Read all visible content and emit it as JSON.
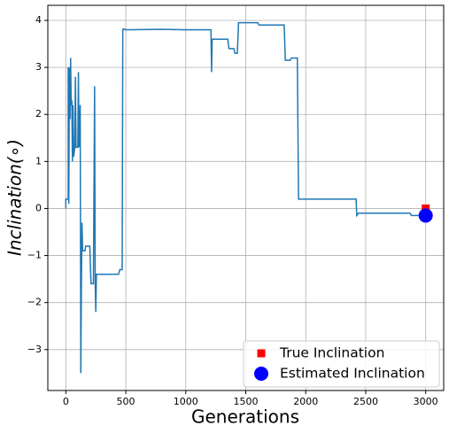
{
  "chart_data": {
    "type": "line",
    "xlabel": "Generations",
    "ylabel": "Inclination(∘)",
    "xlim": [
      -150,
      3150
    ],
    "ylim": [
      -3.87,
      4.32
    ],
    "xticks": [
      0,
      500,
      1000,
      1500,
      2000,
      2500,
      3000
    ],
    "yticks": [
      {
        "value": -3,
        "label": "−3"
      },
      {
        "value": -2,
        "label": "−2"
      },
      {
        "value": -1,
        "label": "−1"
      },
      0,
      1,
      2,
      3,
      4
    ],
    "grid": true,
    "legend": "lower right",
    "series": [
      {
        "color": "#1f77b4",
        "x": [
          0,
          0,
          20,
          20,
          25,
          30,
          35,
          40,
          45,
          50,
          55,
          60,
          65,
          75,
          80,
          85,
          100,
          105,
          110,
          120,
          125,
          130,
          135,
          140,
          160,
          165,
          200,
          210,
          230,
          240,
          245,
          250,
          255,
          300,
          440,
          450,
          470,
          475,
          480,
          500,
          800,
          1000,
          1210,
          1215,
          1220,
          1350,
          1360,
          1400,
          1410,
          1430,
          1440,
          1600,
          1610,
          1820,
          1830,
          1870,
          1880,
          1930,
          1940,
          2420,
          2425,
          2440,
          2870,
          2880,
          3000
        ],
        "values": [
          0,
          0.2,
          0.2,
          3.0,
          0.1,
          3.0,
          1.9,
          3.2,
          2.2,
          2.3,
          1.0,
          2.2,
          1.1,
          1.3,
          2.8,
          1.3,
          1.3,
          2.9,
          1.3,
          2.2,
          -3.5,
          -1.6,
          -0.3,
          -0.9,
          -0.9,
          -0.8,
          -0.8,
          -1.6,
          -1.6,
          2.6,
          -1.6,
          -2.2,
          -1.4,
          -1.4,
          -1.4,
          -1.3,
          -1.3,
          3.8,
          3.82,
          3.8,
          3.81,
          3.8,
          3.8,
          2.9,
          3.6,
          3.6,
          3.4,
          3.4,
          3.3,
          3.3,
          3.95,
          3.95,
          3.9,
          3.9,
          3.15,
          3.15,
          3.2,
          3.2,
          0.2,
          0.2,
          -0.15,
          -0.1,
          -0.1,
          -0.15,
          -0.15
        ]
      }
    ],
    "scatter": [
      {
        "name": "True Inclination",
        "color": "#ff0000",
        "marker": "square",
        "x": [
          3000
        ],
        "values": [
          0
        ]
      },
      {
        "name": "Estimated Inclination",
        "color": "#0000ff",
        "marker": "circle",
        "x": [
          3000
        ],
        "values": [
          -0.15
        ]
      }
    ]
  }
}
